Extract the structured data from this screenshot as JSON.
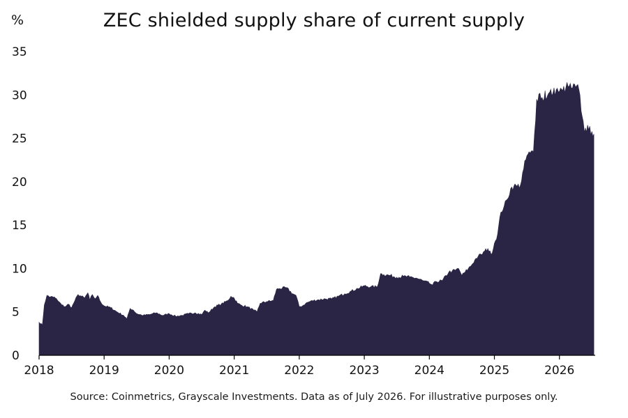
{
  "unit_label": "%",
  "source_note": "Source: Coinmetrics, Grayscale Investments. Data as of July 2026. For illustrative purposes only.",
  "colors": {
    "area": "#2b2545",
    "axis": "#000000",
    "text": "#111111"
  },
  "chart_data": {
    "type": "area",
    "title": "ZEC shielded supply share of current supply",
    "xlabel": "",
    "ylabel": "%",
    "ylim": [
      0,
      35
    ],
    "xlim": [
      2018.0,
      2026.55
    ],
    "x_ticks": [
      2018,
      2019,
      2020,
      2021,
      2022,
      2023,
      2024,
      2025,
      2026
    ],
    "y_ticks": [
      0,
      5,
      10,
      15,
      20,
      25,
      30,
      35
    ],
    "grid": false,
    "legend": "none",
    "series": [
      {
        "x": [
          2018.0,
          2018.05,
          2018.08,
          2018.12,
          2018.16,
          2018.2,
          2018.25,
          2018.3,
          2018.35,
          2018.4,
          2018.45,
          2018.5,
          2018.55,
          2018.6,
          2018.65,
          2018.7,
          2018.75,
          2018.78,
          2018.82,
          2018.86,
          2018.9,
          2018.95,
          2019.0,
          2019.1,
          2019.2,
          2019.3,
          2019.35,
          2019.4,
          2019.45,
          2019.5,
          2019.6,
          2019.7,
          2019.8,
          2019.9,
          2020.0,
          2020.1,
          2020.2,
          2020.3,
          2020.4,
          2020.5,
          2020.55,
          2020.6,
          2020.7,
          2020.8,
          2020.9,
          2020.95,
          2021.0,
          2021.05,
          2021.1,
          2021.2,
          2021.3,
          2021.35,
          2021.4,
          2021.5,
          2021.6,
          2021.65,
          2021.7,
          2021.8,
          2021.9,
          2021.95,
          2022.0,
          2022.05,
          2022.1,
          2022.2,
          2022.3,
          2022.4,
          2022.5,
          2022.6,
          2022.7,
          2022.8,
          2022.9,
          2023.0,
          2023.1,
          2023.2,
          2023.25,
          2023.3,
          2023.4,
          2023.5,
          2023.6,
          2023.7,
          2023.8,
          2023.9,
          2024.0,
          2024.05,
          2024.1,
          2024.2,
          2024.3,
          2024.35,
          2024.4,
          2024.45,
          2024.5,
          2024.55,
          2024.6,
          2024.65,
          2024.7,
          2024.75,
          2024.8,
          2024.85,
          2024.9,
          2024.95,
          2025.0,
          2025.05,
          2025.1,
          2025.15,
          2025.2,
          2025.25,
          2025.3,
          2025.35,
          2025.4,
          2025.45,
          2025.5,
          2025.55,
          2025.6,
          2025.65,
          2025.7,
          2025.75,
          2025.78,
          2025.8,
          2025.85,
          2025.9,
          2025.95,
          2026.0,
          2026.05,
          2026.1,
          2026.15,
          2026.2,
          2026.25,
          2026.3,
          2026.35,
          2026.38,
          2026.4,
          2026.45,
          2026.5,
          2026.53
        ],
        "values": [
          3.8,
          3.5,
          5.8,
          6.9,
          6.7,
          6.8,
          6.6,
          6.2,
          5.8,
          5.6,
          5.9,
          5.5,
          6.3,
          7.0,
          6.8,
          6.6,
          7.2,
          6.4,
          7.0,
          6.5,
          6.9,
          6.1,
          5.7,
          5.5,
          5.0,
          4.6,
          4.2,
          5.4,
          5.2,
          4.8,
          4.6,
          4.7,
          4.9,
          4.6,
          4.8,
          4.5,
          4.6,
          4.8,
          4.9,
          4.7,
          5.2,
          4.9,
          5.6,
          5.9,
          6.3,
          6.8,
          6.6,
          6.0,
          5.8,
          5.6,
          5.2,
          5.0,
          6.0,
          6.2,
          6.3,
          7.6,
          7.7,
          7.8,
          7.1,
          6.9,
          5.6,
          5.7,
          6.0,
          6.3,
          6.4,
          6.5,
          6.5,
          6.8,
          7.1,
          7.4,
          7.7,
          8.0,
          7.9,
          7.9,
          9.4,
          9.3,
          9.2,
          9.0,
          9.1,
          9.0,
          8.9,
          8.6,
          8.3,
          8.1,
          8.5,
          8.6,
          9.6,
          9.7,
          9.8,
          10.0,
          9.2,
          9.6,
          10.0,
          10.4,
          11.0,
          11.4,
          11.6,
          12.0,
          12.3,
          11.6,
          12.9,
          14.0,
          16.5,
          17.2,
          18.0,
          19.2,
          19.5,
          19.5,
          19.6,
          21.5,
          23.0,
          23.3,
          23.4,
          29.5,
          30.2,
          29.3,
          30.5,
          29.5,
          30.3,
          30.2,
          30.6,
          30.4,
          30.5,
          30.9,
          31.0,
          30.8,
          30.9,
          30.6,
          27.5,
          26.0,
          26.2,
          26.0,
          25.8,
          25.5
        ]
      }
    ]
  }
}
